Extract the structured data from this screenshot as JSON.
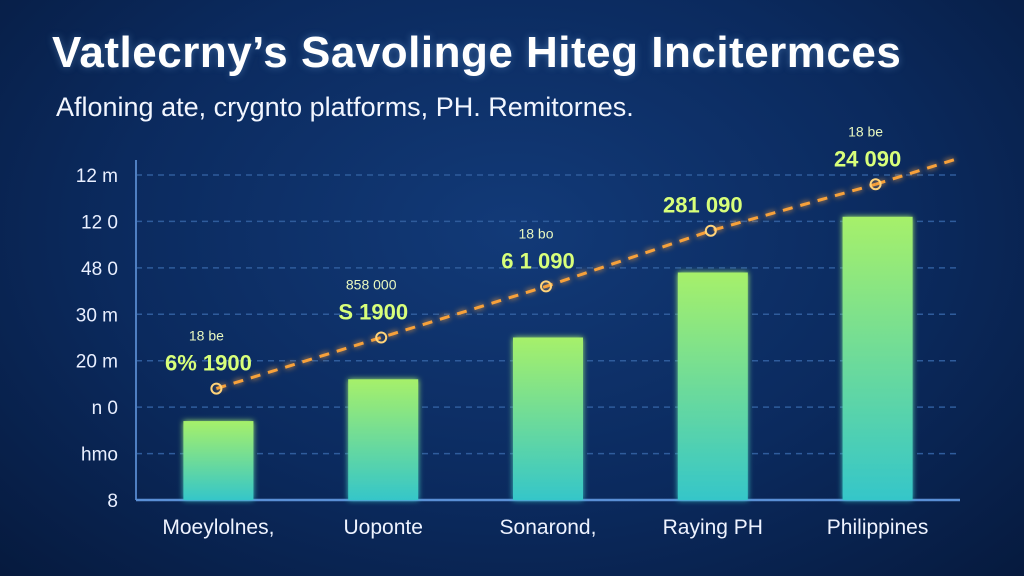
{
  "title": "Vatlecrny’s Savolinge Hiteg Incitermces",
  "subtitle": "Afloning ate, crygnto platforms, PH. Remitornes.",
  "colors": {
    "background": "#0b2a5e",
    "bar_top": "#a6f06a",
    "bar_bottom": "#35c6c9",
    "line": "#f7a13a",
    "grid": "#2f5c9c"
  },
  "chart_data": {
    "type": "bar",
    "title": "Vatlecrny’s Savolinge Hiteg Incitermces",
    "subtitle": "Afloning ate, crygnto platforms, PH. Remitornes.",
    "xlabel": "",
    "ylabel": "",
    "y_tick_labels": [
      "12 m",
      "12 0",
      "48 0",
      "30 m",
      "20 m",
      "n 0",
      "hmo",
      "8"
    ],
    "categories": [
      "Moeylolnes,",
      "Uoponte",
      "Sonarond,",
      "Raying PH",
      "Philippines"
    ],
    "values": [
      1.7,
      2.6,
      3.5,
      4.9,
      6.1
    ],
    "ylim": [
      0,
      7
    ],
    "grid": true,
    "trend_line": {
      "style": "dashed with sparkle markers",
      "points": [
        2.4,
        3.5,
        4.6,
        5.8,
        6.8
      ],
      "labels": [
        {
          "top": "18 be",
          "main": "6% 1900"
        },
        {
          "top": "858 000",
          "main": "S 1900"
        },
        {
          "top": "18 bo",
          "main": "6 1 090"
        },
        {
          "top": "",
          "main": "281 090"
        },
        {
          "top": "18 be",
          "main": "24 090"
        }
      ]
    }
  }
}
